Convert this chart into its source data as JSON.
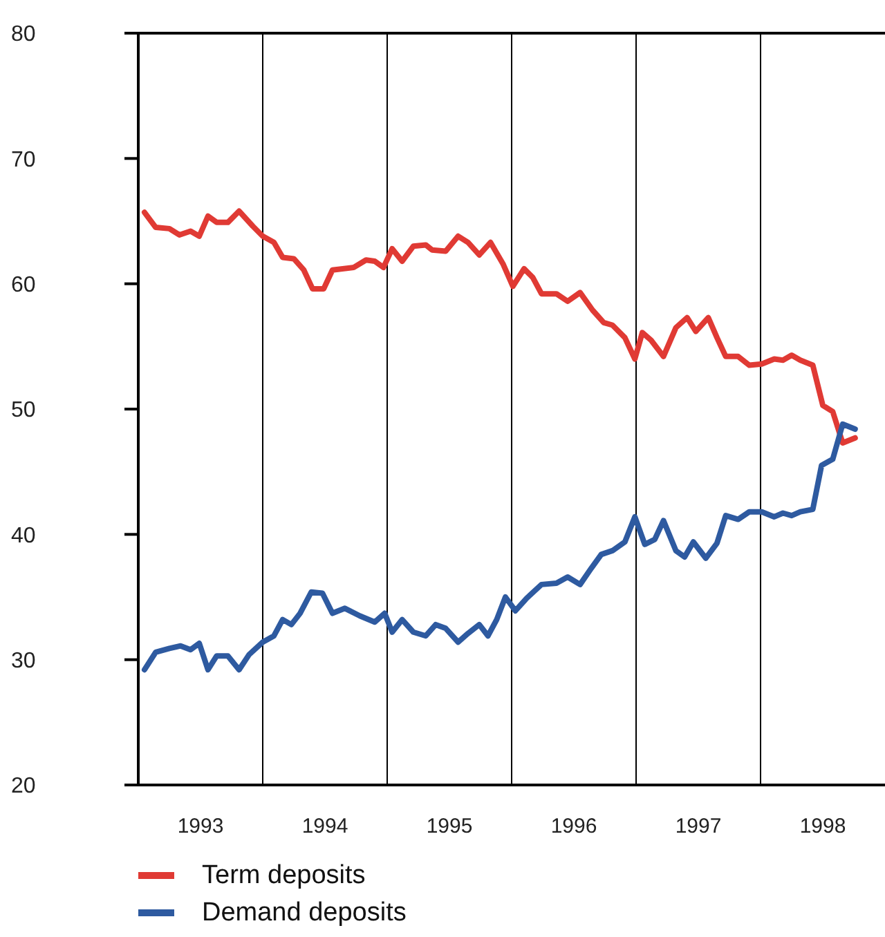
{
  "chart_data": {
    "type": "line",
    "xlim": [
      1993,
      1999
    ],
    "xticks": [
      {
        "value": 1993.5,
        "label": "1993"
      },
      {
        "value": 1994.5,
        "label": "1994"
      },
      {
        "value": 1995.5,
        "label": "1995"
      },
      {
        "value": 1996.5,
        "label": "1996"
      },
      {
        "value": 1997.5,
        "label": "1997"
      },
      {
        "value": 1998.5,
        "label": "1998"
      }
    ],
    "ylim": [
      20,
      80
    ],
    "yticks": [
      20,
      30,
      40,
      50,
      60,
      70,
      80
    ],
    "legend": "bottom left",
    "marker": "none",
    "line_style": "solid",
    "ref_lines": [
      {
        "axis": "x",
        "value": 1994,
        "color": "#000000"
      },
      {
        "axis": "x",
        "value": 1995,
        "color": "#000000"
      },
      {
        "axis": "x",
        "value": 1996,
        "color": "#000000"
      },
      {
        "axis": "x",
        "value": 1997,
        "color": "#000000"
      },
      {
        "axis": "x",
        "value": 1998,
        "color": "#000000"
      }
    ],
    "series": [
      {
        "name": "Term deposits",
        "color": "#e03a34",
        "x": [
          1993.05,
          1993.14,
          1993.25,
          1993.33,
          1993.42,
          1993.49,
          1993.56,
          1993.63,
          1993.72,
          1993.81,
          1993.92,
          1994.0,
          1994.09,
          1994.16,
          1994.25,
          1994.33,
          1994.4,
          1994.49,
          1994.56,
          1994.73,
          1994.83,
          1994.9,
          1994.97,
          1995.04,
          1995.12,
          1995.21,
          1995.31,
          1995.36,
          1995.47,
          1995.57,
          1995.65,
          1995.74,
          1995.83,
          1995.93,
          1996.01,
          1996.1,
          1996.17,
          1996.24,
          1996.36,
          1996.45,
          1996.55,
          1996.65,
          1996.74,
          1996.81,
          1996.91,
          1996.99,
          1997.05,
          1997.12,
          1997.22,
          1997.32,
          1997.41,
          1997.48,
          1997.58,
          1997.65,
          1997.72,
          1997.82,
          1997.91,
          1998.01,
          1998.11,
          1998.18,
          1998.25,
          1998.32,
          1998.42,
          1998.5,
          1998.58,
          1998.66,
          1998.76
        ],
        "values": [
          65.7,
          64.5,
          64.4,
          63.9,
          64.2,
          63.8,
          65.4,
          64.9,
          64.9,
          65.8,
          64.6,
          63.8,
          63.3,
          62.1,
          62.0,
          61.1,
          59.6,
          59.6,
          61.1,
          61.3,
          61.9,
          61.8,
          61.3,
          62.8,
          61.8,
          63.0,
          63.1,
          62.7,
          62.6,
          63.8,
          63.3,
          62.3,
          63.3,
          61.6,
          59.8,
          61.2,
          60.5,
          59.2,
          59.2,
          58.6,
          59.3,
          57.9,
          56.9,
          56.7,
          55.7,
          54.0,
          56.1,
          55.5,
          54.2,
          56.5,
          57.3,
          56.2,
          57.3,
          55.7,
          54.2,
          54.2,
          53.5,
          53.6,
          54.0,
          53.9,
          54.3,
          53.9,
          53.5,
          50.3,
          49.8,
          47.3,
          47.7
        ]
      },
      {
        "name": "Demand deposits",
        "color": "#2e5aa0",
        "x": [
          1993.05,
          1993.14,
          1993.25,
          1993.34,
          1993.42,
          1993.49,
          1993.56,
          1993.63,
          1993.72,
          1993.81,
          1993.89,
          1994.0,
          1994.09,
          1994.16,
          1994.23,
          1994.3,
          1994.39,
          1994.48,
          1994.56,
          1994.66,
          1994.78,
          1994.9,
          1994.98,
          1995.04,
          1995.12,
          1995.21,
          1995.31,
          1995.39,
          1995.47,
          1995.57,
          1995.65,
          1995.74,
          1995.81,
          1995.88,
          1995.95,
          1996.03,
          1996.12,
          1996.24,
          1996.36,
          1996.45,
          1996.55,
          1996.64,
          1996.72,
          1996.81,
          1996.91,
          1996.99,
          1997.07,
          1997.15,
          1997.22,
          1997.32,
          1997.39,
          1997.46,
          1997.56,
          1997.65,
          1997.72,
          1997.82,
          1997.91,
          1998.01,
          1998.11,
          1998.18,
          1998.25,
          1998.32,
          1998.42,
          1998.49,
          1998.58,
          1998.66,
          1998.76
        ],
        "values": [
          29.2,
          30.6,
          30.9,
          31.1,
          30.8,
          31.3,
          29.2,
          30.3,
          30.3,
          29.2,
          30.4,
          31.4,
          31.9,
          33.2,
          32.8,
          33.7,
          35.4,
          35.3,
          33.7,
          34.1,
          33.5,
          33.0,
          33.7,
          32.2,
          33.2,
          32.2,
          31.9,
          32.8,
          32.5,
          31.4,
          32.1,
          32.8,
          31.9,
          33.2,
          35.0,
          33.9,
          34.9,
          36.0,
          36.1,
          36.6,
          36.0,
          37.3,
          38.4,
          38.7,
          39.4,
          41.4,
          39.2,
          39.6,
          41.1,
          38.7,
          38.2,
          39.4,
          38.1,
          39.3,
          41.5,
          41.2,
          41.8,
          41.8,
          41.4,
          41.7,
          41.5,
          41.8,
          42.0,
          45.5,
          46.0,
          48.8,
          48.4
        ]
      }
    ]
  }
}
